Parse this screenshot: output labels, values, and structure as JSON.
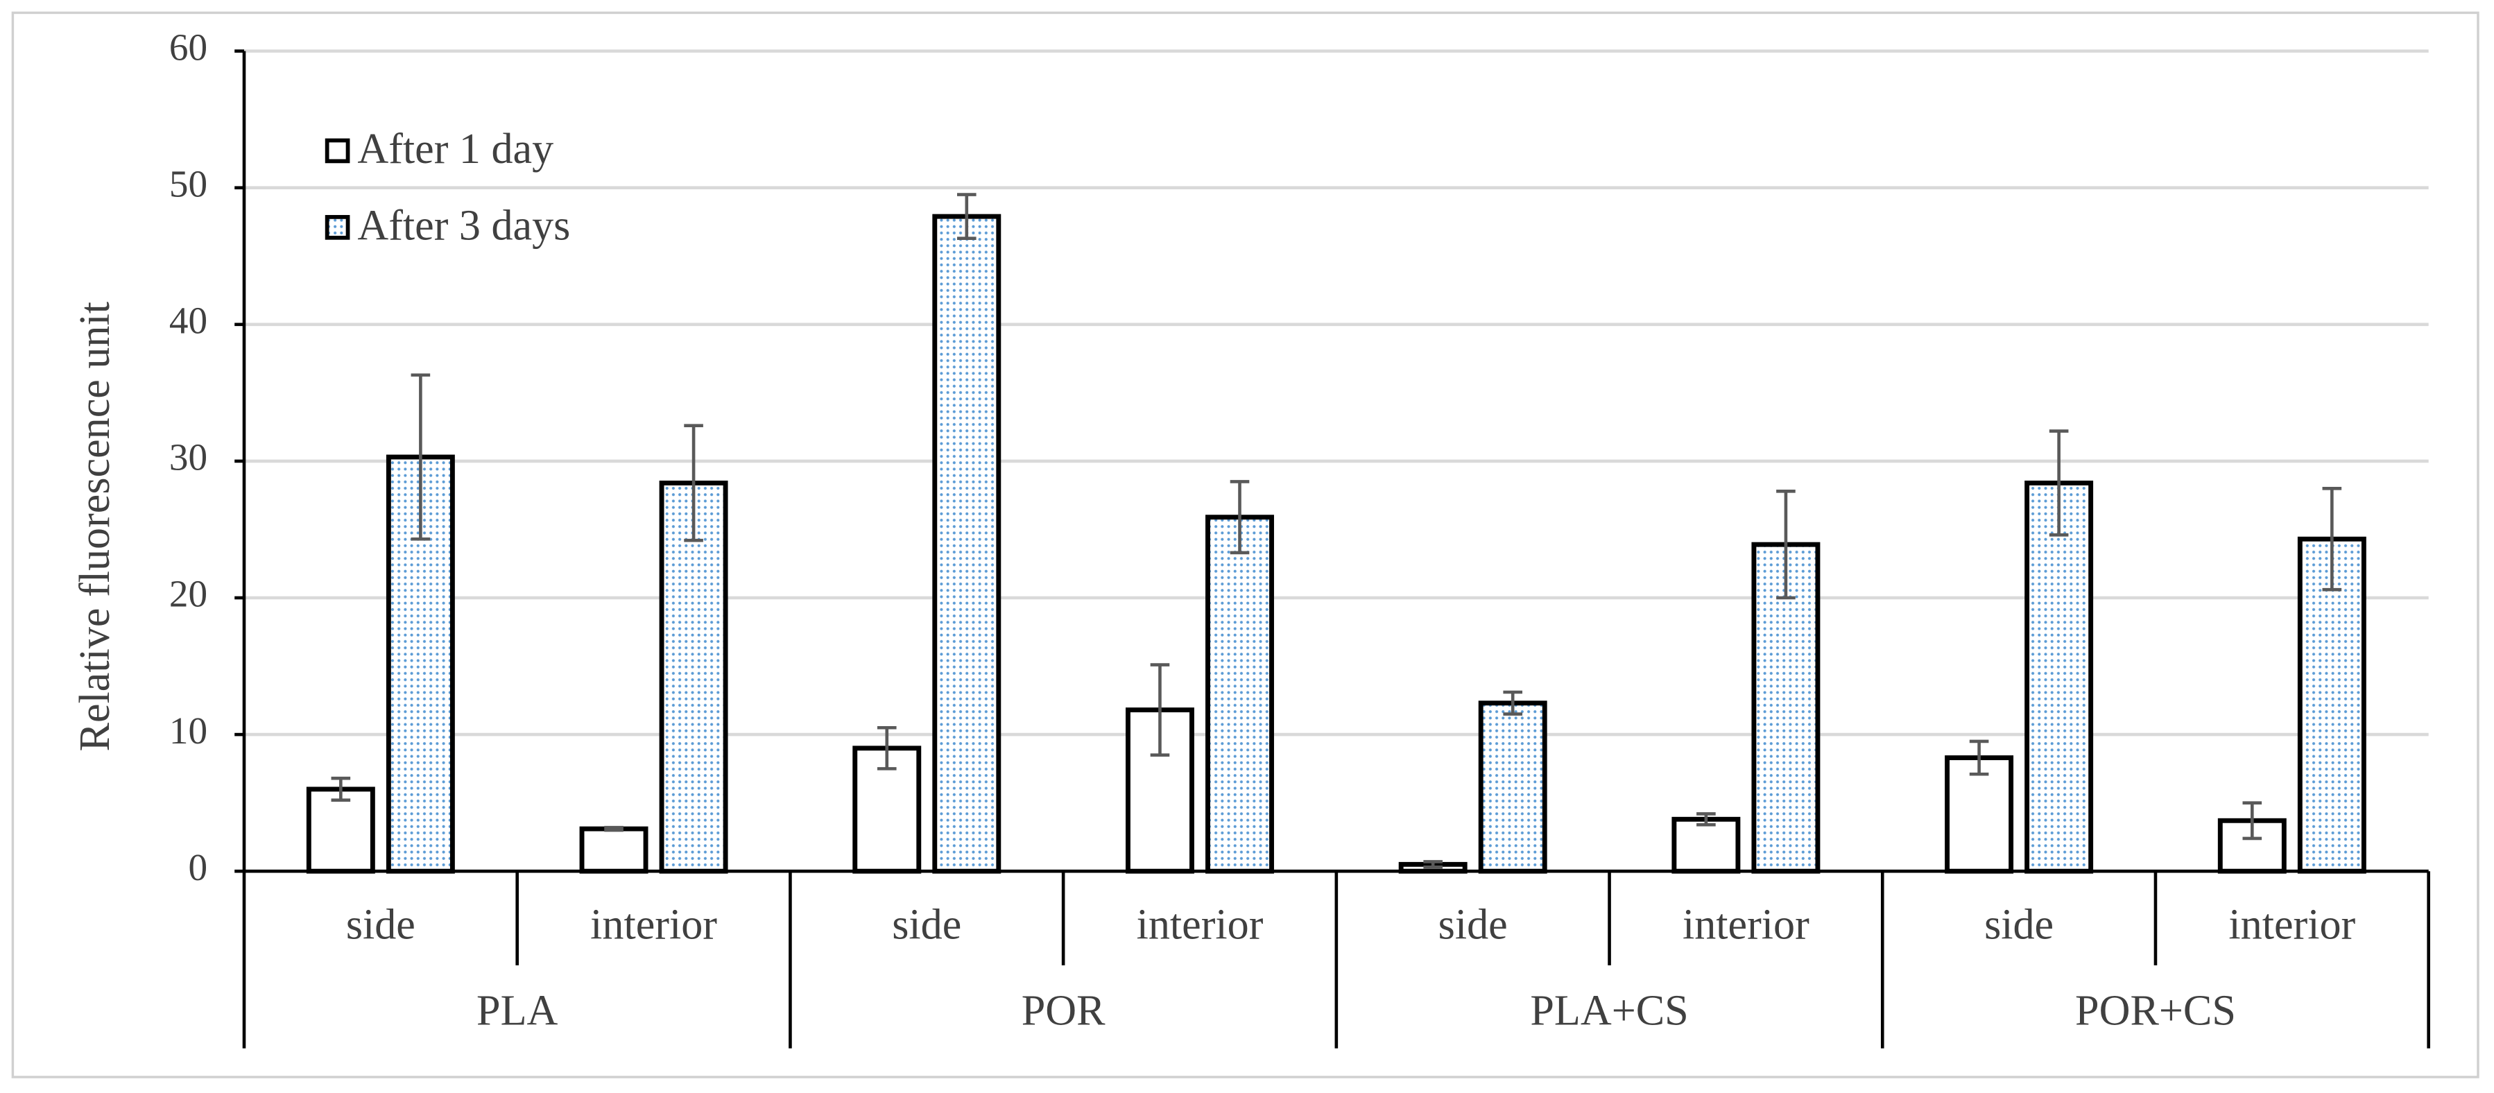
{
  "chart_data": {
    "type": "bar",
    "y_label": "Relative fluorescence unit",
    "categories": [
      "side",
      "interior",
      "side",
      "interior",
      "side",
      "interior",
      "side",
      "interior"
    ],
    "groups": [
      "PLA",
      "POR",
      "PLA+CS",
      "POR+CS"
    ],
    "series": [
      {
        "name": "After 1 day",
        "color": "#ffffff",
        "values": [
          6.0,
          3.1,
          9.0,
          11.8,
          0.5,
          3.8,
          8.3,
          3.7
        ],
        "errors": [
          0.8,
          0.1,
          1.5,
          3.3,
          0.2,
          0.4,
          1.2,
          1.3
        ]
      },
      {
        "name": "After 3 days",
        "color": "#5b9bd5",
        "values": [
          30.3,
          28.4,
          47.9,
          25.9,
          12.3,
          23.9,
          28.4,
          24.3
        ],
        "errors": [
          6.0,
          4.2,
          1.6,
          2.6,
          0.8,
          3.9,
          3.8,
          3.7
        ]
      }
    ],
    "ylim": [
      0,
      60
    ],
    "yticks": [
      0,
      10,
      20,
      30,
      40,
      50,
      60
    ],
    "grid": true,
    "legend": "top-left"
  }
}
